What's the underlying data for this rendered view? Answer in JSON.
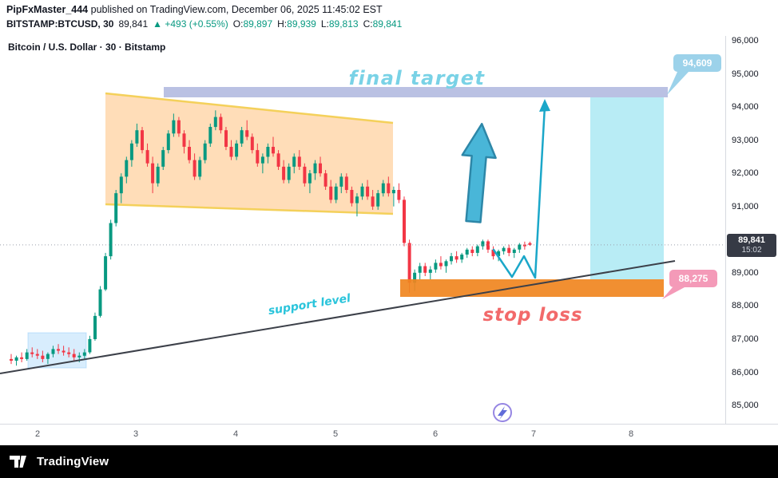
{
  "header": {
    "byline_bold": "PipFxMaster_444",
    "byline_rest": " published on TradingView.com, December 06, 2025 11:45:02 EST",
    "symbol": "BITSTAMP:BTCUSD, 30",
    "price": "89,841",
    "change": "▲ +493 (+0.55%)",
    "ohlc": {
      "o_label": "O:",
      "o": "89,897",
      "h_label": "H:",
      "h": "89,939",
      "l_label": "L:",
      "l": "89,813",
      "c_label": "C:",
      "c": "89,841"
    }
  },
  "chart": {
    "watermark": "Bitcoin / U.S. Dollar · 30 · Bitstamp",
    "final_target_text": "final target",
    "stop_loss_text": "stop loss",
    "support_level_text": "support level",
    "target_label": "94,609",
    "stop_label": "88,275",
    "badge_price": "89,841",
    "badge_countdown": "15:02"
  },
  "axes": {
    "price_ticks": [
      {
        "label": "96,000",
        "value": 96000
      },
      {
        "label": "95,000",
        "value": 95000
      },
      {
        "label": "94,000",
        "value": 94000
      },
      {
        "label": "93,000",
        "value": 93000
      },
      {
        "label": "92,000",
        "value": 92000
      },
      {
        "label": "91,000",
        "value": 91000
      },
      {
        "label": "90,000",
        "value": 90000
      },
      {
        "label": "89,000",
        "value": 89000
      },
      {
        "label": "88,000",
        "value": 88000
      },
      {
        "label": "87,000",
        "value": 87000
      },
      {
        "label": "86,000",
        "value": 86000
      },
      {
        "label": "85,000",
        "value": 85000
      }
    ],
    "time_labels": [
      "2",
      "3",
      "4",
      "5",
      "6",
      "7",
      "8"
    ]
  },
  "footer": {
    "brand": "TradingView"
  },
  "colors": {
    "up": "#089981",
    "down": "#f23645",
    "accent_cyan": "#1ba7c9",
    "target_band": "#a9b1dc",
    "projection_zone": "#62d4e8",
    "stop_band": "#f0861f",
    "channel_fill": "#ffa94d",
    "channel_border": "#f3cf53",
    "bubble_target": "#9cd2ea",
    "bubble_stop": "#f49ab8"
  },
  "chart_data": {
    "type": "candlestick",
    "title": "Bitcoin / U.S. Dollar · 30 · Bitstamp",
    "symbol": "BITSTAMP:BTCUSD",
    "interval": "30",
    "last_bar": {
      "open": 89897,
      "high": 89939,
      "low": 89813,
      "close": 89841,
      "change": 493,
      "change_pct": 0.55
    },
    "levels": {
      "final_target": 94609,
      "stop_loss": 88275,
      "current_price": 89841
    },
    "ylim": [
      84900,
      96150
    ],
    "y_ticks": [
      96000,
      95000,
      94000,
      93000,
      92000,
      91000,
      90000,
      89000,
      88000,
      87000,
      86000,
      85000
    ],
    "x_labels": [
      "2",
      "3",
      "4",
      "5",
      "6",
      "7",
      "8"
    ],
    "legend_position": "none",
    "grid": false,
    "candles": [
      [
        86400,
        86550,
        86250,
        86350
      ],
      [
        86350,
        86500,
        86200,
        86450
      ],
      [
        86450,
        86600,
        86300,
        86400
      ],
      [
        86400,
        86700,
        86350,
        86600
      ],
      [
        86600,
        86750,
        86450,
        86550
      ],
      [
        86550,
        86700,
        86400,
        86500
      ],
      [
        86500,
        86650,
        86300,
        86400
      ],
      [
        86400,
        86600,
        86250,
        86550
      ],
      [
        86550,
        86800,
        86450,
        86700
      ],
      [
        86700,
        86850,
        86550,
        86650
      ],
      [
        86650,
        86800,
        86500,
        86600
      ],
      [
        86600,
        86750,
        86450,
        86550
      ],
      [
        86550,
        86700,
        86350,
        86450
      ],
      [
        86450,
        86600,
        86300,
        86500
      ],
      [
        86500,
        86700,
        86400,
        86600
      ],
      [
        86600,
        87100,
        86550,
        87000
      ],
      [
        87000,
        87800,
        86950,
        87700
      ],
      [
        87700,
        88600,
        87650,
        88500
      ],
      [
        88500,
        89600,
        88450,
        89500
      ],
      [
        89500,
        90600,
        89400,
        90500
      ],
      [
        90500,
        91500,
        90400,
        91400
      ],
      [
        91400,
        92000,
        91100,
        91900
      ],
      [
        91900,
        92500,
        91700,
        92400
      ],
      [
        92400,
        93000,
        92200,
        92900
      ],
      [
        92900,
        93500,
        92800,
        93300
      ],
      [
        93300,
        93400,
        92600,
        92700
      ],
      [
        92700,
        92900,
        92200,
        92300
      ],
      [
        92300,
        92500,
        91400,
        91700
      ],
      [
        91700,
        92300,
        91600,
        92200
      ],
      [
        92200,
        92800,
        92100,
        92700
      ],
      [
        92700,
        93300,
        92600,
        93200
      ],
      [
        93200,
        93800,
        93100,
        93600
      ],
      [
        93600,
        93700,
        93100,
        93200
      ],
      [
        93200,
        93300,
        92600,
        92800
      ],
      [
        92800,
        93000,
        92300,
        92400
      ],
      [
        92400,
        92600,
        91800,
        91900
      ],
      [
        91900,
        92500,
        91800,
        92400
      ],
      [
        92400,
        93000,
        92300,
        92900
      ],
      [
        92900,
        93500,
        92800,
        93400
      ],
      [
        93400,
        93900,
        93300,
        93700
      ],
      [
        93700,
        93800,
        93200,
        93300
      ],
      [
        93300,
        93400,
        92700,
        92800
      ],
      [
        92800,
        93000,
        92400,
        92500
      ],
      [
        92500,
        93000,
        92400,
        92900
      ],
      [
        92900,
        93400,
        92800,
        93300
      ],
      [
        93300,
        93600,
        93000,
        93100
      ],
      [
        93100,
        93200,
        92600,
        92700
      ],
      [
        92700,
        92900,
        92200,
        92300
      ],
      [
        92300,
        92600,
        92000,
        92500
      ],
      [
        92500,
        92900,
        92300,
        92800
      ],
      [
        92800,
        93100,
        92500,
        92600
      ],
      [
        92600,
        92700,
        92100,
        92200
      ],
      [
        92200,
        92400,
        91700,
        91800
      ],
      [
        91800,
        92300,
        91700,
        92200
      ],
      [
        92200,
        92600,
        92000,
        92500
      ],
      [
        92500,
        92700,
        92100,
        92200
      ],
      [
        92200,
        92300,
        91600,
        91700
      ],
      [
        91700,
        92100,
        91400,
        92000
      ],
      [
        92000,
        92400,
        91800,
        92300
      ],
      [
        92300,
        92500,
        91900,
        92000
      ],
      [
        92000,
        92100,
        91500,
        91600
      ],
      [
        91600,
        91800,
        91100,
        91200
      ],
      [
        91200,
        91700,
        91100,
        91600
      ],
      [
        91600,
        92000,
        91400,
        91900
      ],
      [
        91900,
        92000,
        91400,
        91500
      ],
      [
        91500,
        91600,
        91000,
        91100
      ],
      [
        91100,
        91400,
        90700,
        91300
      ],
      [
        91300,
        91700,
        91200,
        91600
      ],
      [
        91600,
        91800,
        91200,
        91300
      ],
      [
        91300,
        91500,
        90900,
        91000
      ],
      [
        91000,
        91500,
        90900,
        91400
      ],
      [
        91400,
        91800,
        91300,
        91700
      ],
      [
        91700,
        91900,
        91300,
        91400
      ],
      [
        91400,
        91600,
        91000,
        91500
      ],
      [
        91500,
        91700,
        91100,
        91200
      ],
      [
        91200,
        91300,
        89800,
        89900
      ],
      [
        89900,
        90000,
        88400,
        88700
      ],
      [
        88700,
        89100,
        88450,
        89000
      ],
      [
        89000,
        89300,
        88800,
        89200
      ],
      [
        89200,
        89300,
        88900,
        89000
      ],
      [
        89000,
        89200,
        88800,
        89100
      ],
      [
        89100,
        89400,
        89000,
        89300
      ],
      [
        89300,
        89500,
        89100,
        89200
      ],
      [
        89200,
        89400,
        89000,
        89350
      ],
      [
        89350,
        89600,
        89250,
        89500
      ],
      [
        89500,
        89650,
        89300,
        89400
      ],
      [
        89400,
        89600,
        89300,
        89550
      ],
      [
        89550,
        89750,
        89450,
        89700
      ],
      [
        89700,
        89800,
        89500,
        89600
      ],
      [
        89600,
        89850,
        89500,
        89800
      ],
      [
        89800,
        90000,
        89700,
        89950
      ],
      [
        89950,
        90000,
        89600,
        89700
      ],
      [
        89700,
        89800,
        89400,
        89500
      ],
      [
        89500,
        89700,
        89350,
        89650
      ],
      [
        89650,
        89800,
        89550,
        89750
      ],
      [
        89750,
        89850,
        89500,
        89600
      ],
      [
        89600,
        89750,
        89450,
        89700
      ],
      [
        89700,
        89900,
        89600,
        89850
      ],
      [
        89850,
        89939,
        89700,
        89800
      ],
      [
        89897,
        89939,
        89813,
        89841
      ]
    ]
  }
}
